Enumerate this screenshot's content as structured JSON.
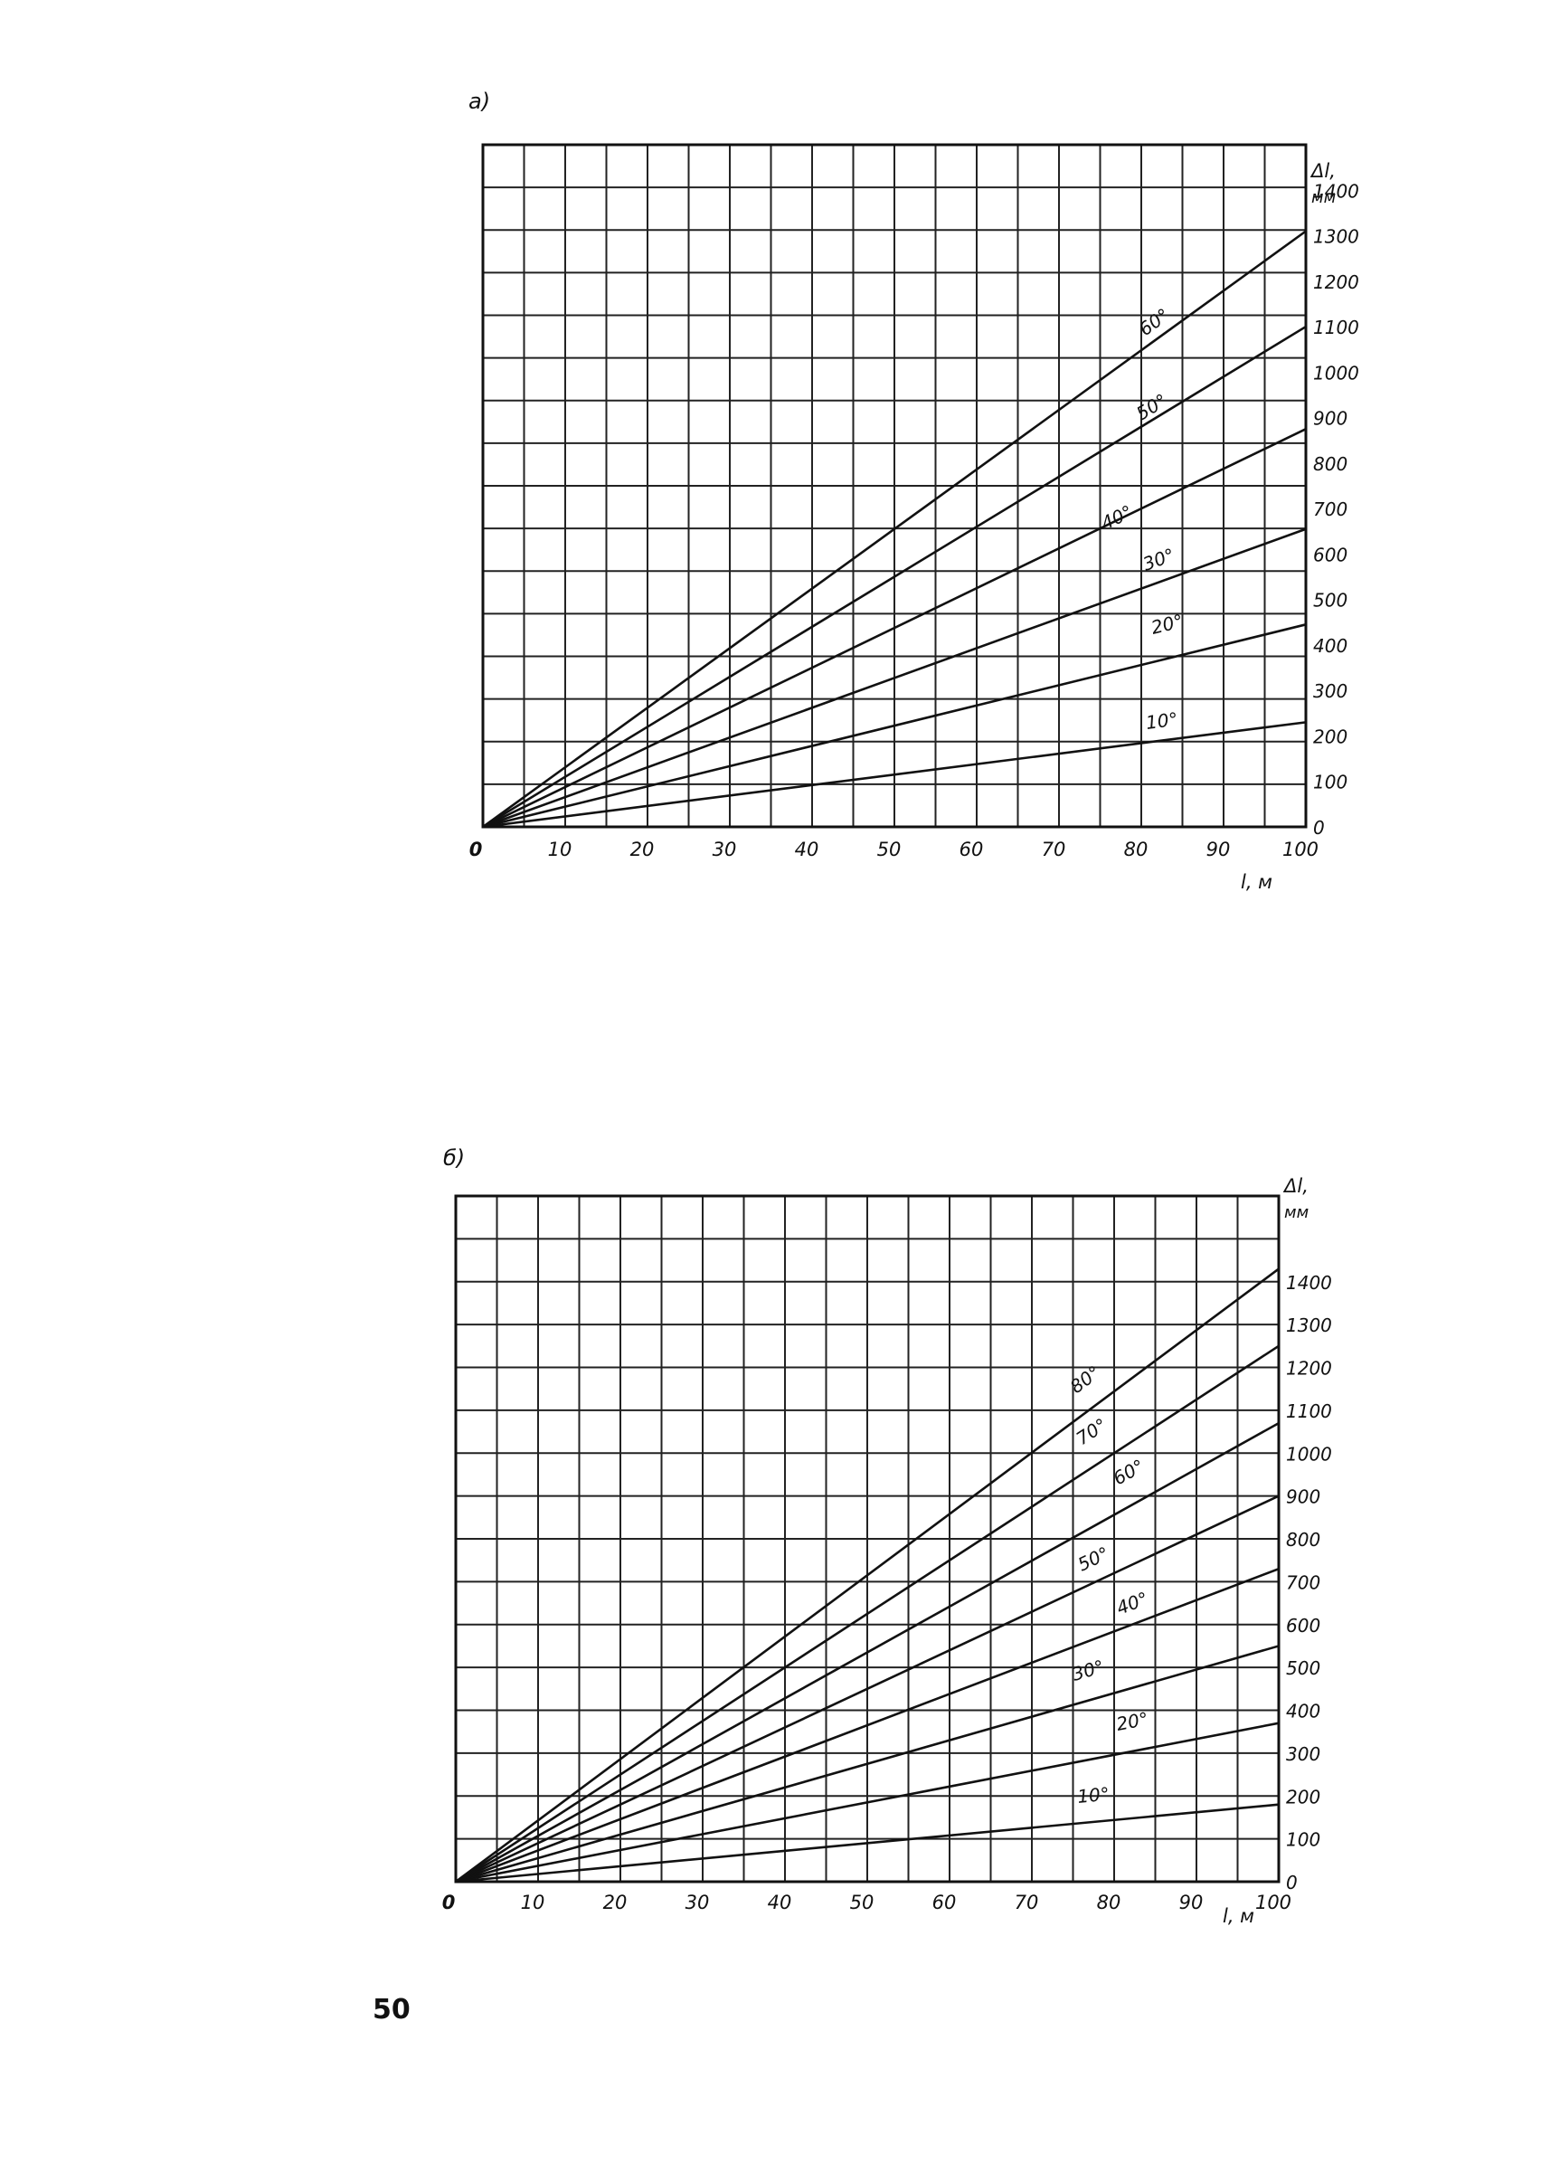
{
  "page_number": "50",
  "chart_data": [
    {
      "type": "line",
      "title": "а)",
      "xlabel": "l, м",
      "ylabel": "Δl,",
      "ylabel_unit": "мм",
      "xlim": [
        0,
        100
      ],
      "ylim": [
        0,
        1500
      ],
      "x_ticks": [
        "0",
        "10",
        "20",
        "30",
        "40",
        "50",
        "60",
        "70",
        "80",
        "90",
        "100"
      ],
      "y_ticks": [
        "0",
        "100",
        "200",
        "300",
        "400",
        "500",
        "600",
        "700",
        "800",
        "900",
        "1000",
        "1100",
        "1200",
        "1300",
        "1400"
      ],
      "grid": true,
      "series": [
        {
          "name": "10°",
          "x": [
            0,
            100
          ],
          "y": [
            0,
            230
          ]
        },
        {
          "name": "20°",
          "x": [
            0,
            100
          ],
          "y": [
            0,
            445
          ]
        },
        {
          "name": "30°",
          "x": [
            0,
            100
          ],
          "y": [
            0,
            655
          ]
        },
        {
          "name": "40°",
          "x": [
            0,
            100
          ],
          "y": [
            0,
            875
          ]
        },
        {
          "name": "50°",
          "x": [
            0,
            100
          ],
          "y": [
            0,
            1100
          ]
        },
        {
          "name": "60°",
          "x": [
            0,
            100
          ],
          "y": [
            0,
            1310
          ]
        }
      ]
    },
    {
      "type": "line",
      "title": "б)",
      "xlabel": "l, м",
      "ylabel": "Δl,",
      "ylabel_unit": "мм",
      "xlim": [
        0,
        100
      ],
      "ylim": [
        0,
        1600
      ],
      "x_ticks": [
        "0",
        "10",
        "20",
        "30",
        "40",
        "50",
        "60",
        "70",
        "80",
        "90",
        "100"
      ],
      "y_ticks": [
        "0",
        "100",
        "200",
        "300",
        "400",
        "500",
        "600",
        "700",
        "800",
        "900",
        "1000",
        "1100",
        "1200",
        "1300",
        "1400"
      ],
      "grid": true,
      "series": [
        {
          "name": "10°",
          "x": [
            0,
            100
          ],
          "y": [
            0,
            180
          ]
        },
        {
          "name": "20°",
          "x": [
            0,
            100
          ],
          "y": [
            0,
            370
          ]
        },
        {
          "name": "30°",
          "x": [
            0,
            100
          ],
          "y": [
            0,
            550
          ]
        },
        {
          "name": "40°",
          "x": [
            0,
            100
          ],
          "y": [
            0,
            730
          ]
        },
        {
          "name": "50°",
          "x": [
            0,
            100
          ],
          "y": [
            0,
            900
          ]
        },
        {
          "name": "60°",
          "x": [
            0,
            100
          ],
          "y": [
            0,
            1070
          ]
        },
        {
          "name": "70°",
          "x": [
            0,
            100
          ],
          "y": [
            0,
            1250
          ]
        },
        {
          "name": "80°",
          "x": [
            0,
            100
          ],
          "y": [
            0,
            1430
          ]
        }
      ]
    }
  ]
}
